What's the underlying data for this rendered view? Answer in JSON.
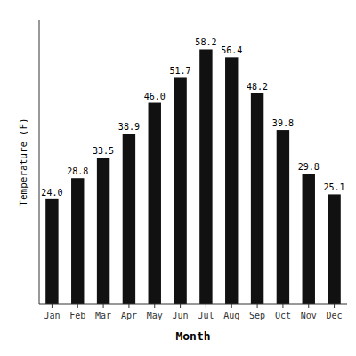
{
  "chart_data": {
    "type": "bar",
    "categories": [
      "Jan",
      "Feb",
      "Mar",
      "Apr",
      "May",
      "Jun",
      "Jul",
      "Aug",
      "Sep",
      "Oct",
      "Nov",
      "Dec"
    ],
    "values": [
      24.0,
      28.8,
      33.5,
      38.9,
      46.0,
      51.7,
      58.2,
      56.4,
      48.2,
      39.8,
      29.8,
      25.1
    ],
    "value_labels": [
      "24.0",
      "28.8",
      "33.5",
      "38.9",
      "46.0",
      "51.7",
      "58.2",
      "56.4",
      "48.2",
      "39.8",
      "29.8",
      "25.1"
    ],
    "data_labels": true,
    "color": "#111111",
    "xlabel": "Month",
    "ylabel": "Temperature (F)",
    "ylim": [
      0,
      65
    ],
    "tick_labels": "x",
    "grid": false
  }
}
